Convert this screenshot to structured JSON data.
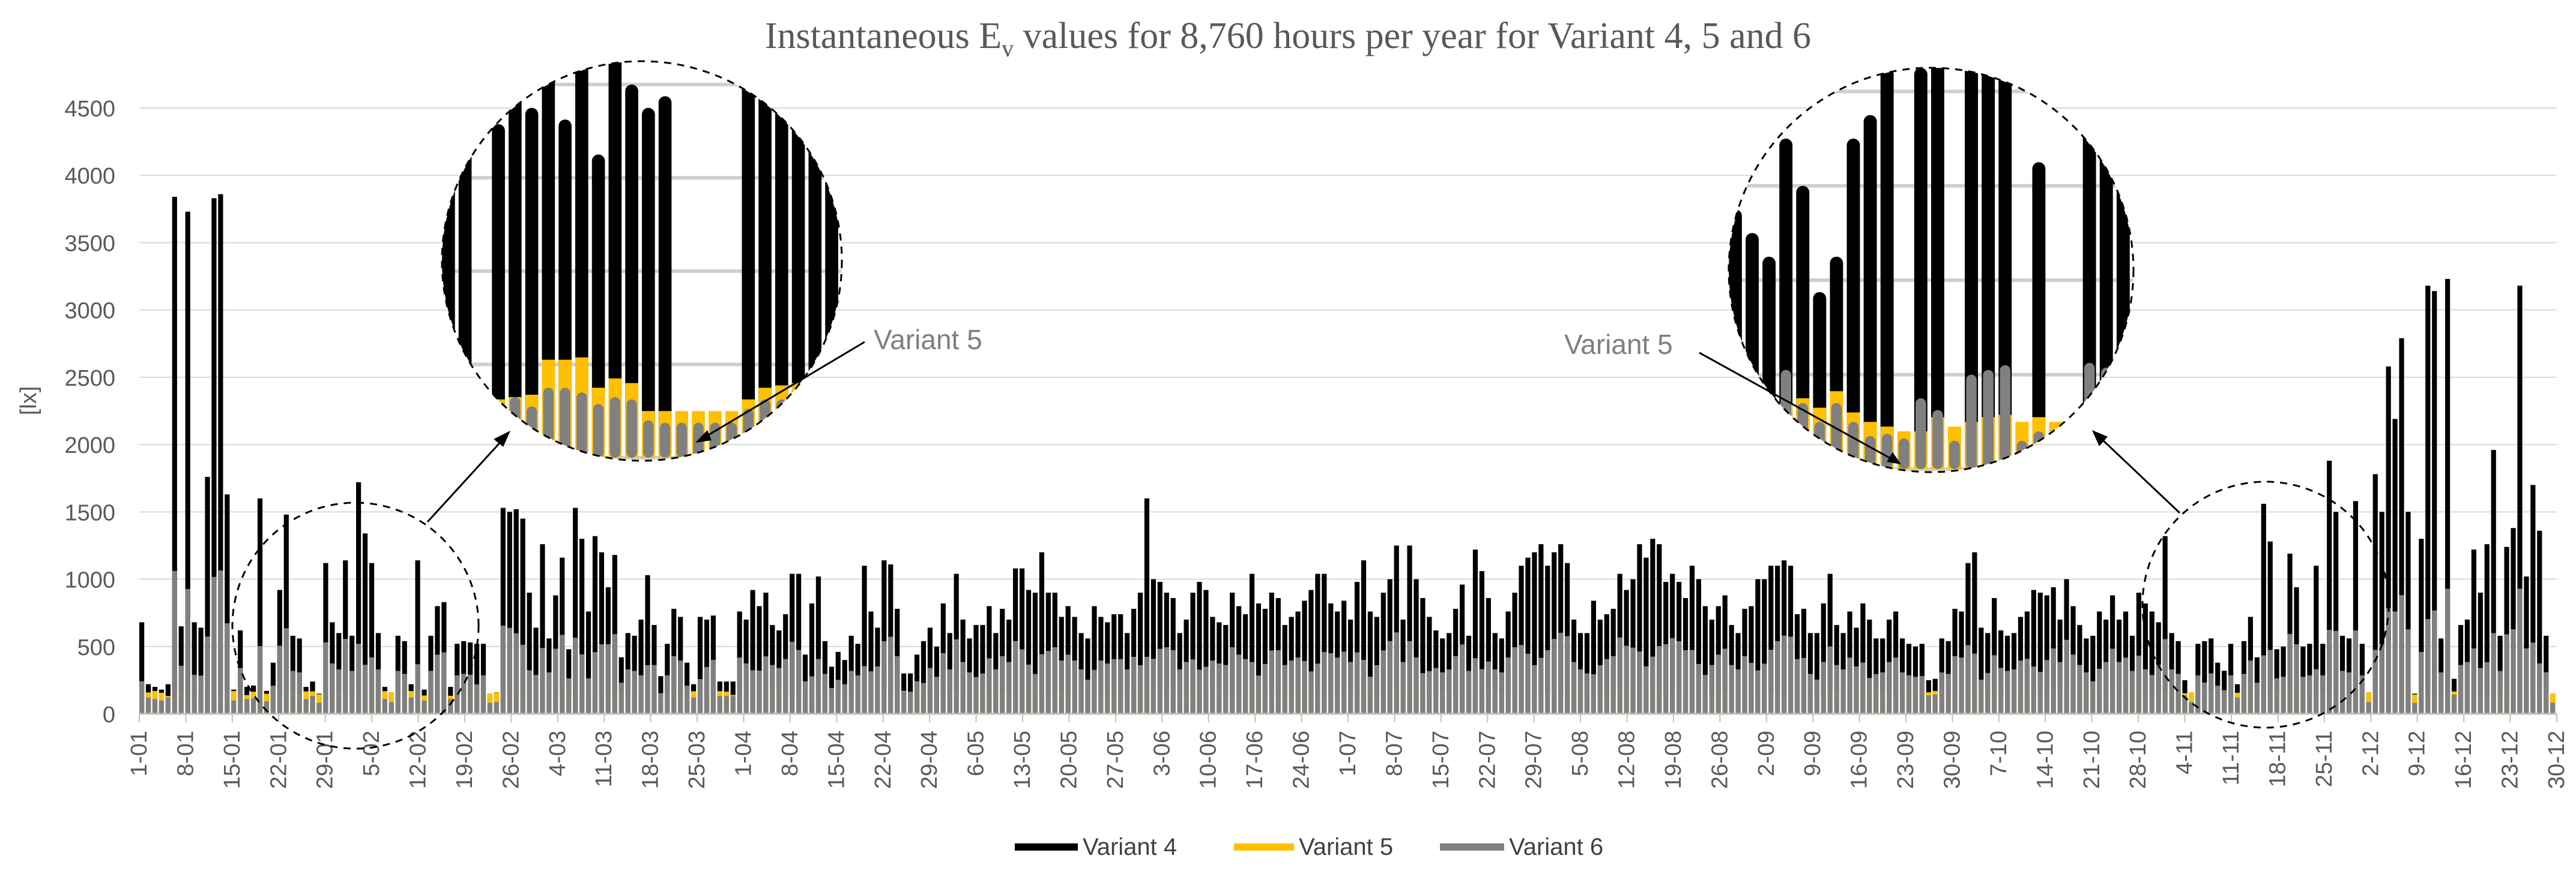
{
  "chart_data": {
    "type": "bar",
    "title_main": "Instantaneous E",
    "title_sub": "v",
    "title_rest": " values for 8,760 hours per year for Variant 4, 5 and 6",
    "ylabel": "[lx]",
    "xlabel": "",
    "ylim": [
      0,
      4500
    ],
    "y_ticks": [
      0,
      500,
      1000,
      1500,
      2000,
      2500,
      3000,
      3500,
      4000,
      4500
    ],
    "grid": true,
    "legend_position": "bottom-center",
    "x_ticks": [
      "1-01",
      "8-01",
      "15-01",
      "22-01",
      "29-01",
      "5-02",
      "12-02",
      "19-02",
      "26-02",
      "4-03",
      "11-03",
      "18-03",
      "25-03",
      "1-04",
      "8-04",
      "15-04",
      "22-04",
      "29-04",
      "6-05",
      "13-05",
      "20-05",
      "27-05",
      "3-06",
      "10-06",
      "17-06",
      "24-06",
      "1-07",
      "8-07",
      "15-07",
      "22-07",
      "29-07",
      "5-08",
      "12-08",
      "19-08",
      "26-08",
      "2-09",
      "9-09",
      "16-09",
      "23-09",
      "30-09",
      "7-10",
      "14-10",
      "21-10",
      "28-10",
      "4-11",
      "11-11",
      "18-11",
      "25-11",
      "2-12",
      "9-12",
      "16-12",
      "23-12",
      "30-12"
    ],
    "series": [
      {
        "name": "Variant 4",
        "color": "#000000"
      },
      {
        "name": "Variant 5",
        "color": "#ffc000"
      },
      {
        "name": "Variant 6",
        "color": "#808080"
      }
    ],
    "daily_peak_values_approx": {
      "Variant 4": [
        680,
        220,
        200,
        180,
        220,
        3840,
        650,
        3730,
        680,
        640,
        1760,
        3830,
        3860,
        1630,
        180,
        620,
        200,
        210,
        1600,
        170,
        380,
        920,
        1480,
        580,
        560,
        200,
        240,
        150,
        1120,
        680,
        600,
        1140,
        580,
        1720,
        1340,
        1120,
        600,
        200,
        160,
        580,
        540,
        220,
        1140,
        180,
        580,
        800,
        830,
        200,
        520,
        540,
        530,
        520,
        520,
        150,
        160,
        1530,
        1500,
        1520,
        1450,
        900,
        640,
        1260,
        560,
        880,
        1160,
        480,
        1530,
        1300,
        760,
        1320,
        1200,
        940,
        1180,
        420,
        600,
        580,
        700,
        1030,
        660,
        280,
        520,
        780,
        720,
        380,
        220,
        720,
        700,
        730,
        240,
        240,
        240,
        760,
        700,
        920,
        800,
        900,
        660,
        620,
        740,
        1040,
        1040,
        440,
        820,
        1020,
        540,
        350,
        460,
        400,
        580,
        520,
        1100,
        760,
        640,
        1140,
        1110,
        780,
        300,
        300,
        440,
        540,
        640,
        500,
        820,
        600,
        1040,
        700,
        560,
        660,
        660,
        800,
        600,
        780,
        700,
        1080,
        1080,
        920,
        900,
        1200,
        900,
        900,
        720,
        800,
        720,
        600,
        560,
        800,
        720,
        680,
        740,
        740,
        600,
        780,
        900,
        1600,
        1000,
        980,
        900,
        860,
        600,
        700,
        900,
        980,
        920,
        720,
        680,
        660,
        900,
        800,
        740,
        1040,
        820,
        780,
        900,
        860,
        660,
        720,
        760,
        840,
        920,
        1040,
        1040,
        820,
        760,
        840,
        700,
        980,
        1140,
        760,
        720,
        900,
        1000,
        1250,
        700,
        1250,
        1000,
        860,
        720,
        620,
        560,
        600,
        780,
        960,
        580,
        1220,
        1060,
        860,
        600,
        560,
        760,
        900,
        1100,
        1160,
        1200,
        1260,
        1100,
        1200,
        1260,
        1120,
        700,
        600,
        600,
        840,
        700,
        740,
        780,
        1040,
        920,
        1000,
        1260,
        1160,
        1300,
        1260,
        980,
        1040,
        980,
        860,
        1100,
        1000,
        800,
        700,
        800,
        880,
        660,
        600,
        780,
        800,
        1000,
        1000,
        1100,
        1100,
        1140,
        1100,
        740,
        780,
        600,
        600,
        820,
        1040,
        660,
        600,
        760,
        640,
        820,
        700,
        560,
        560,
        700,
        760,
        560,
        520,
        500,
        520,
        250,
        260,
        560,
        540,
        780,
        760,
        1120,
        1200,
        640,
        600,
        860,
        620,
        580,
        600,
        720,
        760,
        920,
        900,
        880,
        940,
        700,
        1000,
        800,
        660,
        560,
        580,
        760,
        700,
        880,
        700,
        760,
        580,
        900,
        820,
        760,
        680,
        1320,
        600,
        540,
        250,
        160,
        520,
        540,
        560,
        380,
        320,
        520,
        220,
        540,
        720,
        420,
        1560,
        1280,
        480,
        500,
        1190,
        940,
        500,
        520,
        1100,
        520,
        1880,
        1500,
        580,
        560,
        1580,
        520,
        160,
        1780,
        1500,
        2580,
        2190,
        2790,
        1500,
        150,
        1300,
        3180,
        3140,
        560,
        3230,
        260,
        660,
        700,
        1220,
        900,
        1260,
        1960,
        580,
        1240,
        1380,
        3180,
        1020,
        1700,
        1360,
        580,
        150
      ]
    }
  },
  "legend": [
    {
      "label": "Variant 4",
      "color": "#000000"
    },
    {
      "label": "Variant 5",
      "color": "#ffc000"
    },
    {
      "label": "Variant 6",
      "color": "#808080"
    }
  ],
  "annotations": [
    {
      "label": "Variant 5"
    },
    {
      "label": "Variant 5"
    }
  ]
}
